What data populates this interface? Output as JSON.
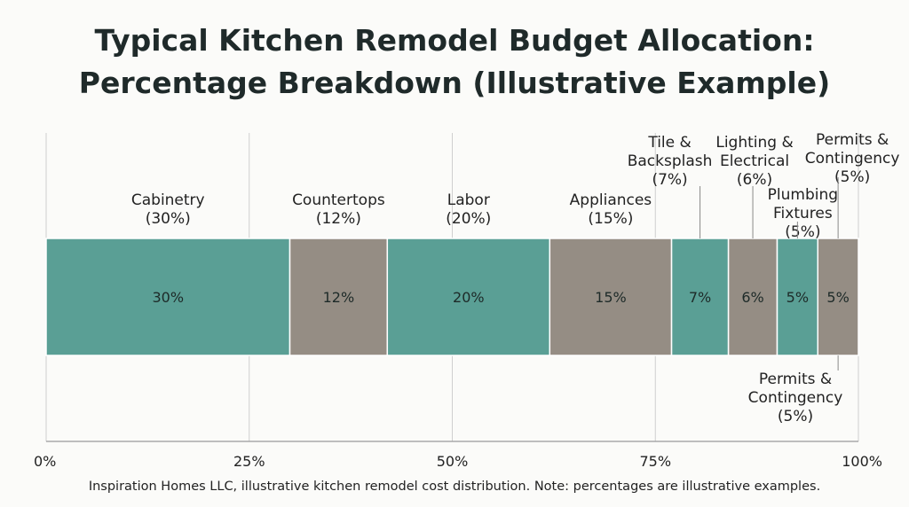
{
  "title_line1": "Typical Kitchen Remodel Budget Allocation:",
  "title_line2": "Percentage Breakdown (Illustrative Example)",
  "footnote": "Inspiration Homes LLC, illustrative kitchen remodel cost distribution. Note: percentages are illustrative examples.",
  "colors": {
    "teal": "#5a9f95",
    "taupe": "#958d84",
    "grid": "#cfcfcf"
  },
  "chart_data": {
    "type": "bar",
    "orientation": "horizontal-stacked",
    "xlim": [
      0,
      100
    ],
    "grid": true,
    "x_ticks": [
      "0%",
      "25%",
      "50%",
      "75%",
      "100%"
    ],
    "segments": [
      {
        "category": "Cabinetry",
        "value": 30,
        "label": "30%",
        "annotation": [
          "Cabinetry",
          "(30%)"
        ],
        "color": "#5a9f95"
      },
      {
        "category": "Countertops",
        "value": 12,
        "label": "12%",
        "annotation": [
          "Countertops",
          "(12%)"
        ],
        "color": "#958d84"
      },
      {
        "category": "Labor",
        "value": 20,
        "label": "20%",
        "annotation": [
          "Labor",
          "(20%)"
        ],
        "color": "#5a9f95"
      },
      {
        "category": "Appliances",
        "value": 15,
        "label": "15%",
        "annotation": [
          "Appliances",
          "(15%)"
        ],
        "color": "#958d84"
      },
      {
        "category": "Tile & Backsplash",
        "value": 7,
        "label": "7%",
        "annotation": [
          "Tile &",
          "Backsplash",
          "(7%)"
        ],
        "color": "#5a9f95"
      },
      {
        "category": "Lighting & Electrical",
        "value": 6,
        "label": "6%",
        "annotation": [
          "Lighting &",
          "Electrical",
          "(6%)"
        ],
        "color": "#958d84"
      },
      {
        "category": "Plumbing Fixtures",
        "value": 5,
        "label": "5%",
        "annotation": [
          "Plumbing",
          "Fixtures",
          "(5%)"
        ],
        "color": "#5a9f95"
      },
      {
        "category": "Permits & Contingency",
        "value": 5,
        "label": "5%",
        "annotation": [
          "Permits &",
          "Contingency",
          "(5%)"
        ],
        "color": "#958d84"
      }
    ],
    "extra_annotation": [
      "Permits &",
      "Contingency",
      "(5%)"
    ]
  }
}
